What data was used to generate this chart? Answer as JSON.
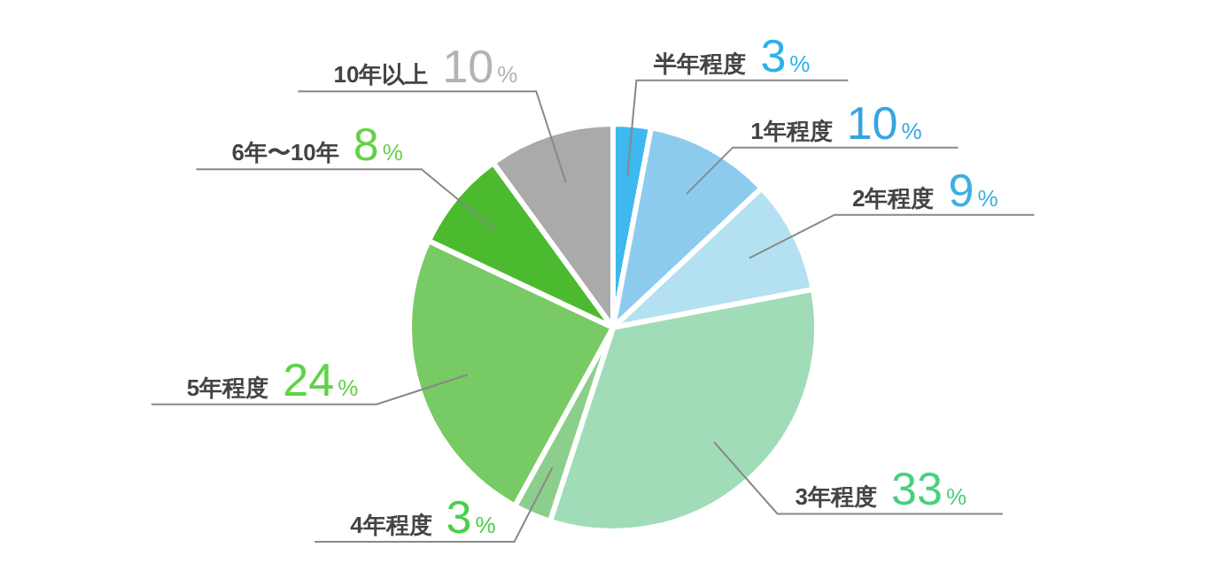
{
  "chart_data": {
    "type": "pie",
    "categories": [
      "半年程度",
      "1年程度",
      "2年程度",
      "3年程度",
      "4年程度",
      "5年程度",
      "6年〜10年",
      "10年以上"
    ],
    "values": [
      3,
      10,
      9,
      33,
      3,
      24,
      8,
      10
    ],
    "colors": [
      "#3fb8ee",
      "#8dcbee",
      "#b4e1f2",
      "#a1dcb8",
      "#8ccf8c",
      "#78ca64",
      "#4cba2f",
      "#aaaaaa"
    ],
    "value_labels": [
      "3%",
      "10%",
      "9%",
      "33%",
      "3%",
      "24%",
      "8%",
      "10%"
    ]
  }
}
